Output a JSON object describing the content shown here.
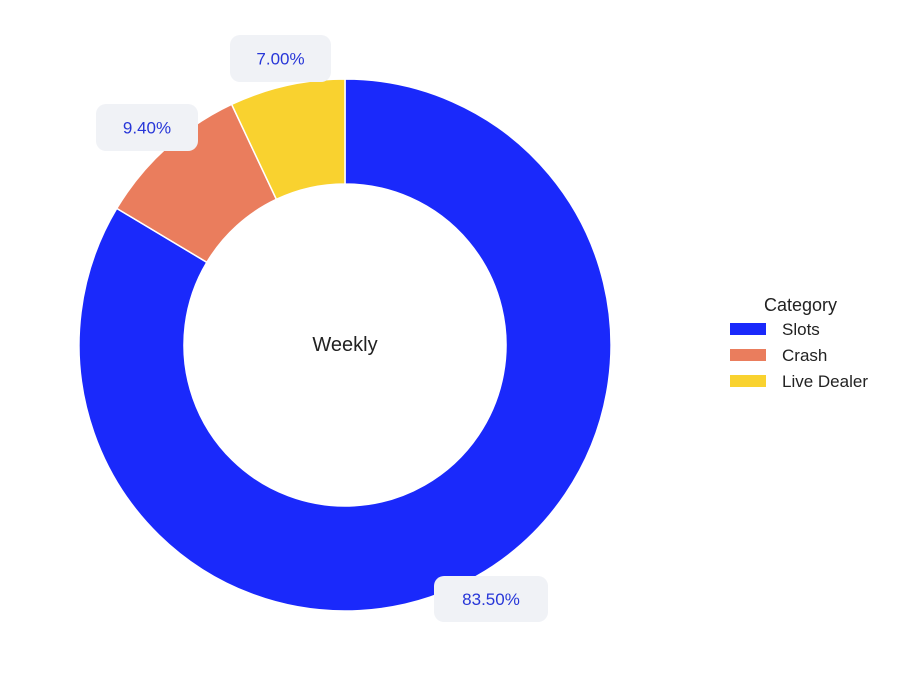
{
  "chart_data": {
    "type": "pie",
    "hole": true,
    "center_label": "Weekly",
    "legend": {
      "title": "Category",
      "placement": "right"
    },
    "slices": [
      {
        "name": "Slots",
        "value": 83.5,
        "label": "83.50%",
        "color": "#1a29fb"
      },
      {
        "name": "Crash",
        "value": 9.4,
        "label": "9.40%",
        "color": "#ea7d5d"
      },
      {
        "name": "Live Dealer",
        "value": 7.0,
        "label": "7.00%",
        "color": "#f9d22f"
      }
    ]
  }
}
